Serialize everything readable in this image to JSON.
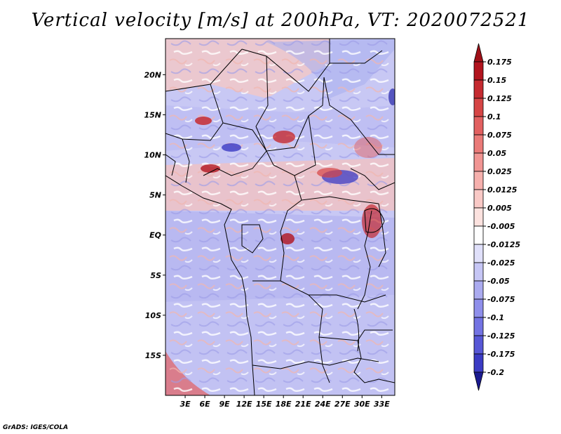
{
  "title": "Vertical velocity [m/s] at 200hPa, VT: 2020072521",
  "credit": "GrADS: IGES/COLA",
  "map": {
    "lon_range": [
      0,
      35
    ],
    "lat_range": [
      -20,
      24.5
    ],
    "lon_ticks": [
      {
        "value": 3,
        "label": "3E"
      },
      {
        "value": 6,
        "label": "6E"
      },
      {
        "value": 9,
        "label": "9E"
      },
      {
        "value": 12,
        "label": "12E"
      },
      {
        "value": 15,
        "label": "15E"
      },
      {
        "value": 18,
        "label": "18E"
      },
      {
        "value": 21,
        "label": "21E"
      },
      {
        "value": 24,
        "label": "24E"
      },
      {
        "value": 27,
        "label": "27E"
      },
      {
        "value": 30,
        "label": "30E"
      },
      {
        "value": 33,
        "label": "33E"
      }
    ],
    "lat_ticks": [
      {
        "value": 20,
        "label": "20N"
      },
      {
        "value": 15,
        "label": "15N"
      },
      {
        "value": 10,
        "label": "10N"
      },
      {
        "value": 5,
        "label": "5N"
      },
      {
        "value": 0,
        "label": "EQ"
      },
      {
        "value": -5,
        "label": "5S"
      },
      {
        "value": -10,
        "label": "10S"
      },
      {
        "value": -15,
        "label": "15S"
      }
    ]
  },
  "colorbar": {
    "levels": [
      {
        "label": "0.175",
        "color": "#b2141e"
      },
      {
        "label": "0.15",
        "color": "#c52a30"
      },
      {
        "label": "0.125",
        "color": "#d64545"
      },
      {
        "label": "0.1",
        "color": "#e26060"
      },
      {
        "label": "0.075",
        "color": "#ea7a78"
      },
      {
        "label": "0.05",
        "color": "#f19593"
      },
      {
        "label": "0.025",
        "color": "#f6b0ad"
      },
      {
        "label": "0.0125",
        "color": "#f9c9c6"
      },
      {
        "label": "0.005",
        "color": "#fce2df"
      },
      {
        "label": "-0.005",
        "color": "#ffffff"
      },
      {
        "label": "-0.0125",
        "color": "#e0e0fa"
      },
      {
        "label": "-0.025",
        "color": "#c6c6f5"
      },
      {
        "label": "-0.05",
        "color": "#ababf0"
      },
      {
        "label": "-0.075",
        "color": "#8f8feb"
      },
      {
        "label": "-0.1",
        "color": "#7373e3"
      },
      {
        "label": "-0.125",
        "color": "#5757d6"
      },
      {
        "label": "-0.175",
        "color": "#3b3bc4"
      },
      {
        "label": "-0.2",
        "color": "#2323a8"
      }
    ],
    "top_color": "#a01018",
    "bottom_color": "#1a1a90"
  }
}
